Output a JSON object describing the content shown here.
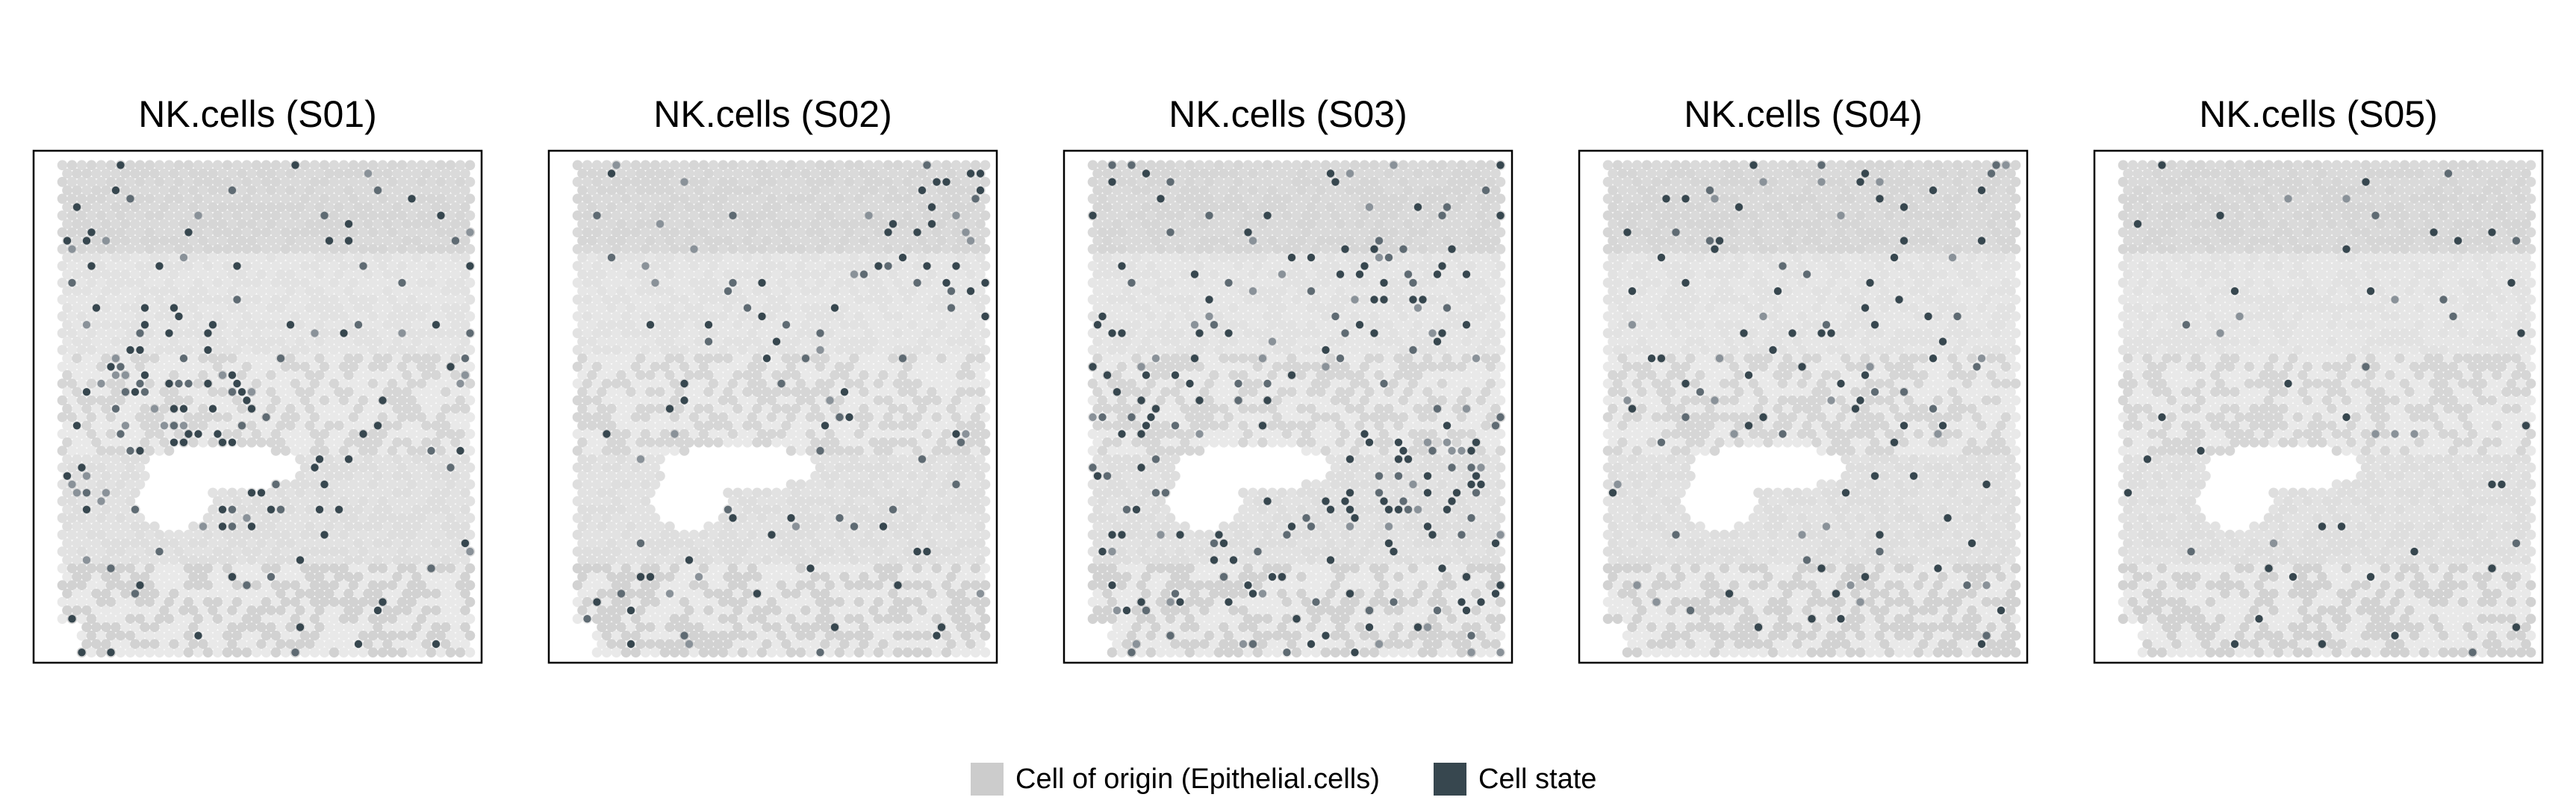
{
  "chart_data": {
    "type": "scatter",
    "description_note": "",
    "colors": {
      "background_spot": "#d9d9d9",
      "cell_state": "#37474f",
      "panel_border": "#000000"
    },
    "panels": [
      {
        "title": "NK.cells (S01)",
        "cell_state_density": "high-left"
      },
      {
        "title": "NK.cells (S02)",
        "cell_state_density": "sparse"
      },
      {
        "title": "NK.cells (S03)",
        "cell_state_density": "high-bottom-right"
      },
      {
        "title": "NK.cells (S04)",
        "cell_state_density": "medium"
      },
      {
        "title": "NK.cells (S05)",
        "cell_state_density": "very-sparse"
      }
    ],
    "legend": {
      "placement": "bottom-center",
      "items": [
        {
          "label": "Cell of origin (Epithelial.cells)",
          "color": "#cccccc"
        },
        {
          "label": "Cell state",
          "color": "#37474f"
        }
      ]
    },
    "axes": "none",
    "grid": false
  }
}
